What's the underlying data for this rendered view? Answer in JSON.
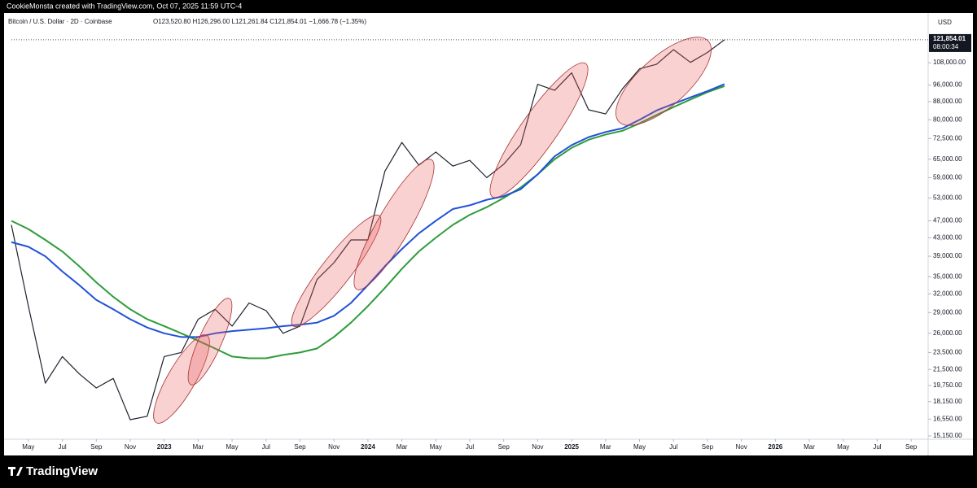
{
  "header": {
    "credit": "CookieMonsta created with TradingView.com, Oct 07, 2025 11:59 UTC-4",
    "symbol": "Bitcoin / U.S. Dollar · 2D · Coinbase",
    "ohlc": "O123,520.80 H126,296.00 L121,261.84 C121,854.01 −1,666.78 (−1.35%)"
  },
  "footer": {
    "brand": "TradingView"
  },
  "chart_data": {
    "type": "line",
    "log_scale": true,
    "grid": false,
    "currency": "USD",
    "x": [
      "2022-04",
      "2022-05",
      "2022-06",
      "2022-07",
      "2022-08",
      "2022-09",
      "2022-10",
      "2022-11",
      "2022-12",
      "2023-01",
      "2023-02",
      "2023-03",
      "2023-04",
      "2023-05",
      "2023-06",
      "2023-07",
      "2023-08",
      "2023-09",
      "2023-10",
      "2023-11",
      "2023-12",
      "2024-01",
      "2024-02",
      "2024-03",
      "2024-04",
      "2024-05",
      "2024-06",
      "2024-07",
      "2024-08",
      "2024-09",
      "2024-10",
      "2024-11",
      "2024-12",
      "2025-01",
      "2025-02",
      "2025-03",
      "2025-04",
      "2025-05",
      "2025-06",
      "2025-07",
      "2025-08",
      "2025-09",
      "2025-10"
    ],
    "series": [
      {
        "color": "#1e222d",
        "values": [
          46000,
          30000,
          20000,
          23000,
          21000,
          19500,
          20500,
          16500,
          16800,
          23000,
          23500,
          28000,
          29500,
          27000,
          30500,
          29300,
          26000,
          27000,
          34500,
          37700,
          42500,
          42500,
          61000,
          71000,
          63000,
          67500,
          62700,
          64600,
          59000,
          63300,
          70200,
          96400,
          93400,
          102400,
          84300,
          82500,
          94200,
          104600,
          107100,
          115700,
          108200,
          114000,
          121854.01
        ]
      },
      {
        "color": "#2e9c3a",
        "values": [
          47000,
          45000,
          42500,
          40000,
          37000,
          34000,
          31500,
          29500,
          28000,
          27000,
          26000,
          25000,
          24000,
          23000,
          22800,
          22800,
          23200,
          23500,
          24000,
          25500,
          27500,
          30000,
          33000,
          36500,
          40000,
          43000,
          46000,
          48500,
          50500,
          53000,
          56000,
          60000,
          65000,
          69000,
          72000,
          74000,
          75500,
          78500,
          82000,
          85500,
          89000,
          92500,
          95500
        ]
      },
      {
        "color": "#2151d8",
        "values": [
          42000,
          41000,
          39000,
          36000,
          33500,
          31000,
          29500,
          28000,
          26800,
          26000,
          25500,
          25500,
          26000,
          26300,
          26500,
          26700,
          27000,
          27200,
          27500,
          28500,
          30500,
          33500,
          37000,
          40500,
          44000,
          47000,
          50000,
          51000,
          52500,
          53500,
          55500,
          60000,
          66000,
          70000,
          73000,
          75000,
          76500,
          80000,
          84000,
          87000,
          90000,
          93000,
          96500
        ]
      }
    ],
    "xlim": [
      "2022-04",
      "2026-10"
    ],
    "xticks": [
      {
        "value": "2022-05",
        "label": "May"
      },
      {
        "value": "2022-07",
        "label": "Jul"
      },
      {
        "value": "2022-09",
        "label": "Sep"
      },
      {
        "value": "2022-11",
        "label": "Nov"
      },
      {
        "value": "2023-01",
        "label": "2023"
      },
      {
        "value": "2023-03",
        "label": "Mar"
      },
      {
        "value": "2023-05",
        "label": "May"
      },
      {
        "value": "2023-07",
        "label": "Jul"
      },
      {
        "value": "2023-09",
        "label": "Sep"
      },
      {
        "value": "2023-11",
        "label": "Nov"
      },
      {
        "value": "2024-01",
        "label": "2024"
      },
      {
        "value": "2024-03",
        "label": "Mar"
      },
      {
        "value": "2024-05",
        "label": "May"
      },
      {
        "value": "2024-07",
        "label": "Jul"
      },
      {
        "value": "2024-09",
        "label": "Sep"
      },
      {
        "value": "2024-11",
        "label": "Nov"
      },
      {
        "value": "2025-01",
        "label": "2025"
      },
      {
        "value": "2025-03",
        "label": "Mar"
      },
      {
        "value": "2025-05",
        "label": "May"
      },
      {
        "value": "2025-07",
        "label": "Jul"
      },
      {
        "value": "2025-09",
        "label": "Sep"
      },
      {
        "value": "2025-11",
        "label": "Nov"
      },
      {
        "value": "2026-01",
        "label": "2026"
      },
      {
        "value": "2026-03",
        "label": "Mar"
      },
      {
        "value": "2026-05",
        "label": "May"
      },
      {
        "value": "2026-07",
        "label": "Jul"
      },
      {
        "value": "2026-09",
        "label": "Sep"
      }
    ],
    "ylim": [
      14890,
      140300
    ],
    "yticks": [
      {
        "value": 15150,
        "label": "15,150.00"
      },
      {
        "value": 16550,
        "label": "16,550.00"
      },
      {
        "value": 18150,
        "label": "18,150.00"
      },
      {
        "value": 19750,
        "label": "19,750.00"
      },
      {
        "value": 21500,
        "label": "21,500.00"
      },
      {
        "value": 23500,
        "label": "23,500.00"
      },
      {
        "value": 26000,
        "label": "26,000.00"
      },
      {
        "value": 29000,
        "label": "29,000.00"
      },
      {
        "value": 32000,
        "label": "32,000.00"
      },
      {
        "value": 35000,
        "label": "35,000.00"
      },
      {
        "value": 39000,
        "label": "39,000.00"
      },
      {
        "value": 43000,
        "label": "43,000.00"
      },
      {
        "value": 47000,
        "label": "47,000.00"
      },
      {
        "value": 53000,
        "label": "53,000.00"
      },
      {
        "value": 59000,
        "label": "59,000.00"
      },
      {
        "value": 65000,
        "label": "65,000.00"
      },
      {
        "value": 72500,
        "label": "72,500.00"
      },
      {
        "value": 80000,
        "label": "80,000.00"
      },
      {
        "value": 88000,
        "label": "88,000.00"
      },
      {
        "value": 96000,
        "label": "96,000.00"
      },
      {
        "value": 108000,
        "label": "108,000.00"
      }
    ],
    "price_label": {
      "value": 121854.01,
      "label": "121,854.01"
    },
    "countdown": "08:00:34"
  }
}
